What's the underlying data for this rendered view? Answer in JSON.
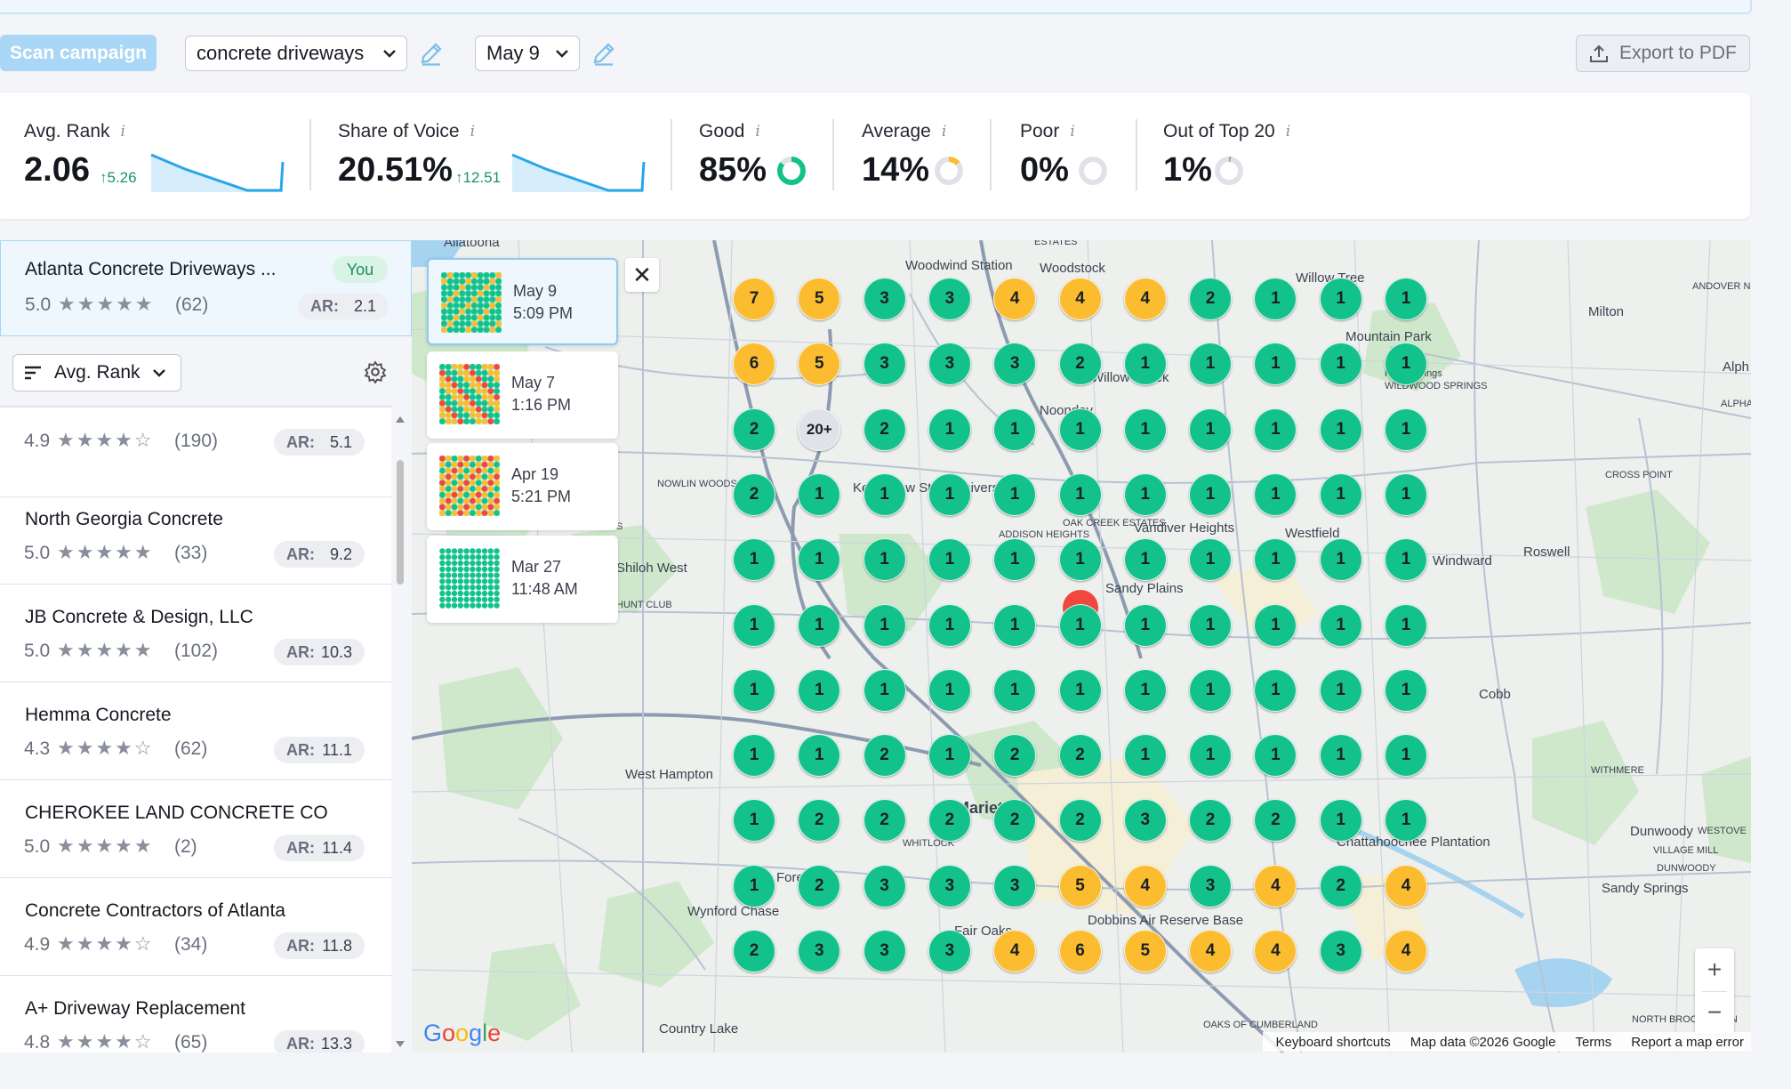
{
  "toolbar": {
    "scan_label": "Scan campaign",
    "keyword": "concrete driveways",
    "date": "May 9",
    "export_label": "Export to PDF"
  },
  "metrics": {
    "avg_rank": {
      "label": "Avg. Rank",
      "value": "2.06",
      "delta": "↑5.26"
    },
    "share_of_voice": {
      "label": "Share of Voice",
      "value": "20.51%",
      "delta": "↑12.51"
    },
    "good": {
      "label": "Good",
      "value": "85%",
      "fraction": 0.85
    },
    "average": {
      "label": "Average",
      "value": "14%",
      "fraction": 0.14
    },
    "poor": {
      "label": "Poor",
      "value": "0%",
      "fraction": 0
    },
    "out_of_top": {
      "label": "Out of Top 20",
      "value": "1%",
      "fraction": 0.01
    }
  },
  "selected_business": {
    "name": "Atlanta Concrete Driveways ...",
    "badge": "You",
    "rating": "5.0",
    "stars": 5,
    "reviews": "(62)",
    "ar_label": "AR:",
    "ar": "2.1"
  },
  "sort": {
    "label": "Avg. Rank"
  },
  "competitors": [
    {
      "name": "",
      "rating": "4.9",
      "stars": 4,
      "reviews": "(190)",
      "ar": "5.1"
    },
    {
      "name": "North Georgia Concrete",
      "rating": "5.0",
      "stars": 5,
      "reviews": "(33)",
      "ar": "9.2"
    },
    {
      "name": "JB Concrete & Design, LLC",
      "rating": "5.0",
      "stars": 5,
      "reviews": "(102)",
      "ar": "10.3"
    },
    {
      "name": "Hemma Concrete",
      "rating": "4.3",
      "stars": 4,
      "reviews": "(62)",
      "ar": "11.1"
    },
    {
      "name": "CHEROKEE LAND CONCRETE CO",
      "rating": "5.0",
      "stars": 5,
      "reviews": "(2)",
      "ar": "11.4"
    },
    {
      "name": "Concrete Contractors of Atlanta",
      "rating": "4.9",
      "stars": 4,
      "reviews": "(34)",
      "ar": "11.8"
    },
    {
      "name": "A+ Driveway Replacement",
      "rating": "4.8",
      "stars": 4,
      "reviews": "(65)",
      "ar": "13.3"
    }
  ],
  "history": [
    {
      "date": "May 9",
      "time": "5:09 PM",
      "selected": true
    },
    {
      "date": "May 7",
      "time": "1:16 PM",
      "selected": false
    },
    {
      "date": "Apr 19",
      "time": "5:21 PM",
      "selected": false
    },
    {
      "date": "Mar 27",
      "time": "11:48 AM",
      "selected": false
    }
  ],
  "grid_ranks": [
    [
      "7",
      "5",
      "3",
      "3",
      "4",
      "4",
      "4",
      "2",
      "1",
      "1",
      "1"
    ],
    [
      "6",
      "5",
      "3",
      "3",
      "3",
      "2",
      "1",
      "1",
      "1",
      "1",
      "1"
    ],
    [
      "2",
      "20+",
      "2",
      "1",
      "1",
      "1",
      "1",
      "1",
      "1",
      "1",
      "1"
    ],
    [
      "2",
      "1",
      "1",
      "1",
      "1",
      "1",
      "1",
      "1",
      "1",
      "1",
      "1"
    ],
    [
      "1",
      "1",
      "1",
      "1",
      "1",
      "1",
      "1",
      "1",
      "1",
      "1",
      "1"
    ],
    [
      "1",
      "1",
      "1",
      "1",
      "1",
      "1",
      "1",
      "1",
      "1",
      "1",
      "1"
    ],
    [
      "1",
      "1",
      "1",
      "1",
      "1",
      "1",
      "1",
      "1",
      "1",
      "1",
      "1"
    ],
    [
      "1",
      "1",
      "2",
      "1",
      "2",
      "2",
      "1",
      "1",
      "1",
      "1",
      "1"
    ],
    [
      "1",
      "2",
      "2",
      "2",
      "2",
      "2",
      "3",
      "2",
      "2",
      "1",
      "1"
    ],
    [
      "1",
      "2",
      "3",
      "3",
      "3",
      "5",
      "4",
      "3",
      "4",
      "2",
      "4"
    ],
    [
      "2",
      "3",
      "3",
      "3",
      "4",
      "6",
      "5",
      "4",
      "4",
      "3",
      "4"
    ]
  ],
  "colors": {
    "good": "#13c28b",
    "average": "#fbbd2f",
    "poor": "#f0483e",
    "out": "#dfe2e8",
    "accent": "#2aa6e8"
  },
  "map_labels": [
    "Allatoona",
    "Woodwind Station",
    "Woodstock",
    "Willow Tree",
    "Milton",
    "Mountain Park",
    "Alph",
    "Noonday",
    "Kennesaw State University",
    "Vandiver Heights",
    "Westfield",
    "Roswell",
    "Sandy Plains",
    "West Hampton",
    "Marietta",
    "Chattahoochee Plantation",
    "Dunwoody",
    "Sandy Springs",
    "Wynford Chase",
    "Fair Oaks",
    "Dobbins Air Reserve Base",
    "Country Lake",
    "ESTATES",
    "ANDOVER NORTH",
    "WILDWOOD SPRINGS",
    "ALPHA",
    "CROSS POINT",
    "OAK CREEK ESTATES",
    "ADDISON HEIGHTS",
    "WITHMERE",
    "WESTOVE",
    "VILLAGE MILL",
    "DUNWOODY",
    "NORTH BROOKHAVEN",
    "OAKS OF CUMBERLAND",
    "WHITLOCK",
    "NOWLIN WOODS",
    "HARRIS WOODS",
    "Shiloh West",
    "HUNT CLUB",
    "Forest",
    "Windward",
    "Cobb",
    "Willow Creek",
    "Holly Springs"
  ],
  "attribution": {
    "shortcuts": "Keyboard shortcuts",
    "data": "Map data ©2026 Google",
    "terms": "Terms",
    "report": "Report a map error"
  }
}
